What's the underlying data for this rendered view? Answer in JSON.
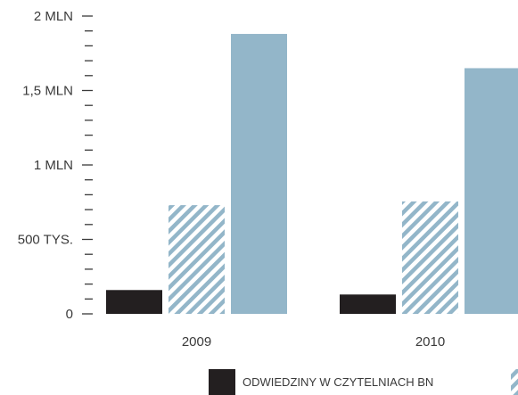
{
  "chart_data": {
    "type": "bar",
    "categories": [
      "2009",
      "2010"
    ],
    "series": [
      {
        "name": "ODWIEDZINY W CZYTELNIACH BN",
        "values": [
          160000,
          130000
        ],
        "color": "#231f20",
        "pattern": "solid"
      },
      {
        "values": [
          730000,
          755000
        ],
        "color": "#93b6c9",
        "pattern": "hatched"
      },
      {
        "values": [
          1880000,
          1650000
        ],
        "color": "#93b6c9",
        "pattern": "solid"
      }
    ],
    "ylim": [
      0,
      2000000
    ],
    "yticks": [
      {
        "value": 0,
        "label": "0"
      },
      {
        "value": 500000,
        "label": "500 TYS."
      },
      {
        "value": 1000000,
        "label": "1 MLN"
      },
      {
        "value": 1500000,
        "label": "1,5 MLN"
      },
      {
        "value": 2000000,
        "label": "2 MLN"
      }
    ],
    "minor_step": 100000,
    "grid": false,
    "legend_position": "bottom"
  }
}
